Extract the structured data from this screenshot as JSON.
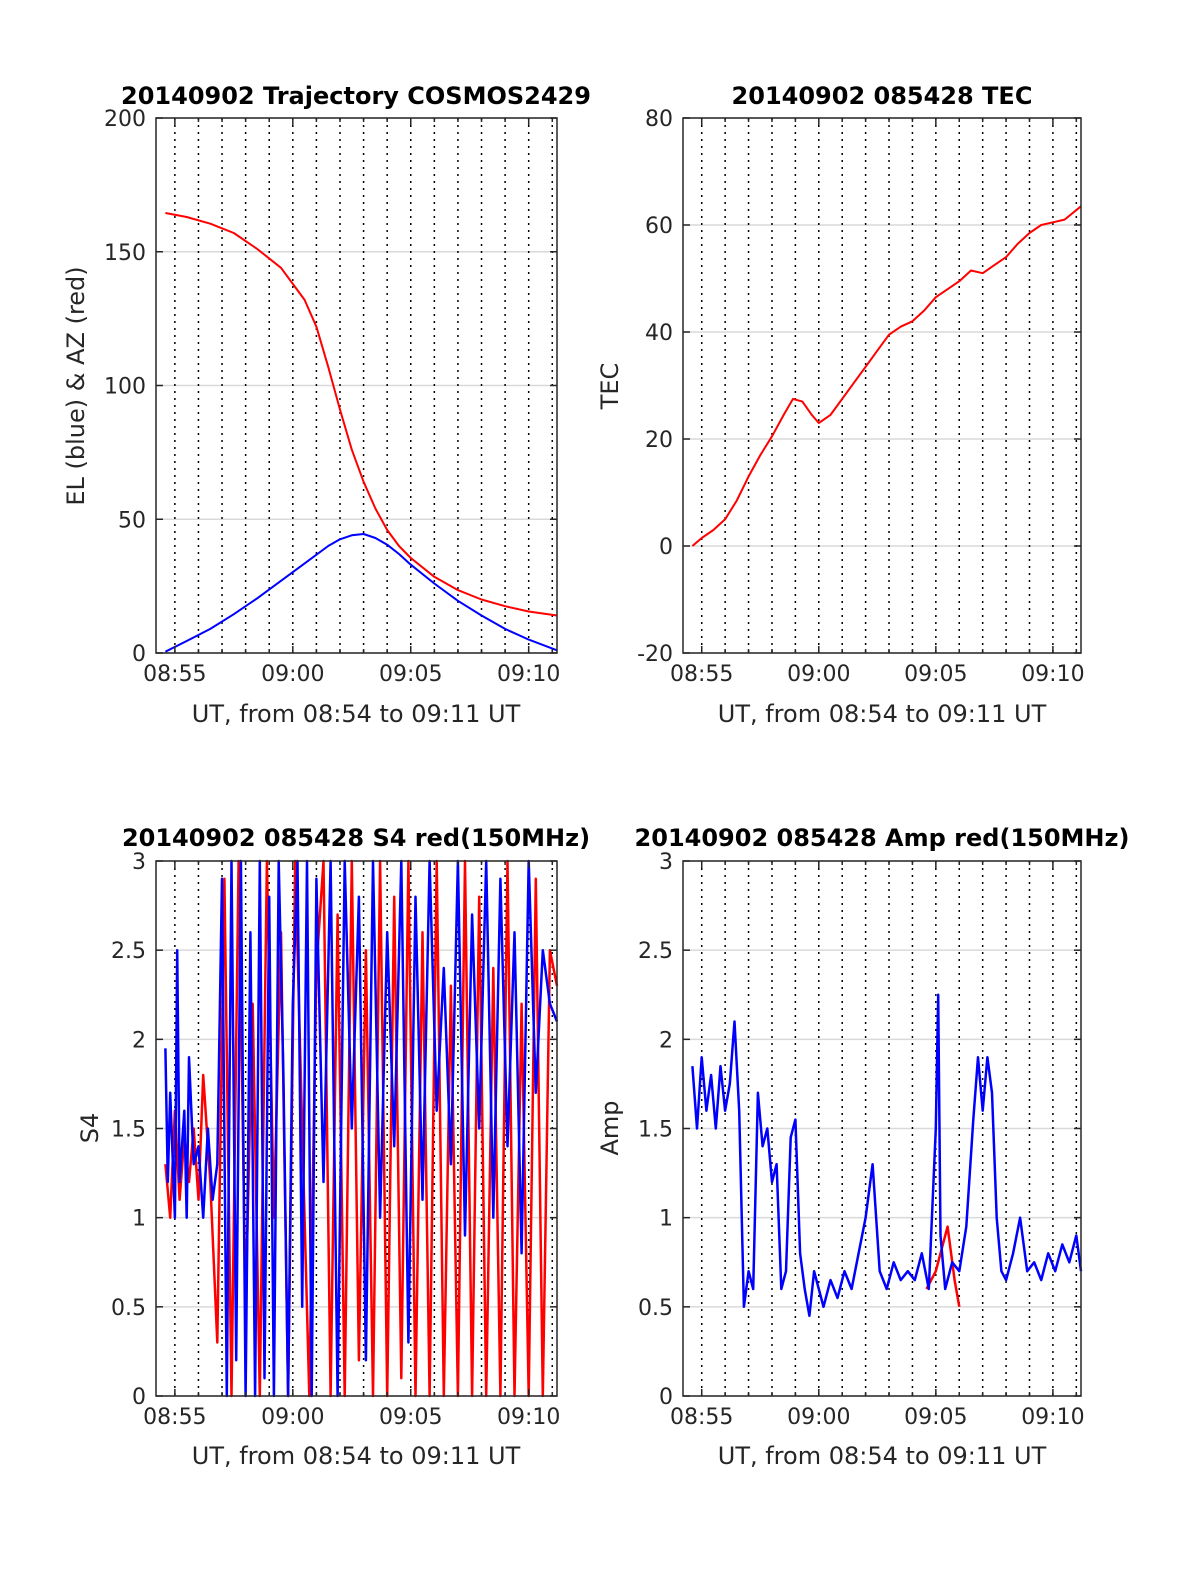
{
  "figure": {
    "colors": {
      "red": "#ff0000",
      "blue": "#0000ff",
      "grid": "#d9d9d9",
      "vline": "#000000"
    }
  },
  "chart_data": [
    {
      "type": "line",
      "title": "20140902 Trajectory COSMOS2429",
      "xlabel": "UT, from 08:54 to 09:11 UT",
      "ylabel": "EL (blue) & AZ (red)",
      "xlim": [
        534.2,
        551.2
      ],
      "ylim": [
        0,
        200
      ],
      "x_ticks": [
        535,
        540,
        545,
        550
      ],
      "x_tick_labels": [
        "08:55",
        "09:00",
        "09:05",
        "09:10"
      ],
      "y_ticks": [
        0,
        50,
        100,
        150,
        200
      ],
      "y_tick_labels": [
        "0",
        "50",
        "100",
        "150",
        "200"
      ],
      "grid": true,
      "series": [
        {
          "color": "red",
          "x": [
            534.6,
            535.5,
            536.5,
            537.5,
            538.5,
            539.5,
            540.5,
            541.0,
            541.5,
            542.0,
            542.5,
            543.0,
            543.5,
            544.0,
            544.5,
            545.0,
            546.0,
            547.0,
            548.0,
            549.0,
            550.0,
            551.2
          ],
          "values": [
            164.5,
            163.0,
            160.5,
            157.0,
            151.0,
            144.0,
            132.0,
            122.0,
            107.0,
            91.0,
            76.0,
            64.0,
            54.0,
            46.0,
            40.0,
            35.5,
            28.5,
            23.5,
            20.0,
            17.5,
            15.5,
            14.0
          ]
        },
        {
          "color": "blue",
          "x": [
            534.6,
            535.5,
            536.5,
            537.5,
            538.5,
            539.5,
            540.5,
            541.5,
            542.0,
            542.5,
            543.0,
            543.5,
            544.0,
            544.5,
            545.0,
            546.0,
            547.0,
            548.0,
            549.0,
            550.0,
            551.2
          ],
          "values": [
            0.5,
            4.5,
            9.0,
            14.5,
            20.5,
            27.0,
            33.5,
            40.0,
            42.5,
            44.0,
            44.5,
            43.0,
            40.5,
            37.0,
            33.0,
            26.0,
            19.5,
            14.0,
            9.0,
            5.0,
            1.0
          ]
        }
      ]
    },
    {
      "type": "line",
      "title": "20140902 085428 TEC",
      "xlabel": "UT, from 08:54 to 09:11 UT",
      "ylabel": "TEC",
      "xlim": [
        534.2,
        551.2
      ],
      "ylim": [
        -20,
        80
      ],
      "x_ticks": [
        535,
        540,
        545,
        550
      ],
      "x_tick_labels": [
        "08:55",
        "09:00",
        "09:05",
        "09:10"
      ],
      "y_ticks": [
        -20,
        0,
        20,
        40,
        60,
        80
      ],
      "y_tick_labels": [
        "-20",
        "0",
        "20",
        "40",
        "60",
        "80"
      ],
      "grid": true,
      "series": [
        {
          "color": "red",
          "x": [
            534.6,
            535.0,
            535.5,
            536.0,
            536.5,
            537.0,
            537.5,
            538.0,
            538.5,
            538.9,
            539.3,
            539.7,
            540.0,
            540.5,
            541.0,
            541.5,
            542.0,
            542.5,
            543.0,
            543.5,
            544.0,
            544.5,
            545.0,
            545.5,
            546.0,
            546.5,
            547.0,
            547.5,
            548.0,
            548.5,
            549.0,
            549.5,
            550.0,
            550.5,
            551.2
          ],
          "values": [
            0,
            1.5,
            3.0,
            5.0,
            8.5,
            13.0,
            17.0,
            20.5,
            24.5,
            27.5,
            27.0,
            24.5,
            23.0,
            24.5,
            27.5,
            30.5,
            33.5,
            36.5,
            39.5,
            41.0,
            42.0,
            44.0,
            46.5,
            48.0,
            49.5,
            51.5,
            51.0,
            52.5,
            54.0,
            56.5,
            58.5,
            60.0,
            60.5,
            61.0,
            63.5
          ]
        }
      ]
    },
    {
      "type": "line",
      "title": "20140902 085428 S4 red(150MHz)",
      "xlabel": "UT, from 08:54 to 09:11 UT",
      "ylabel": "S4",
      "xlim": [
        534.2,
        551.2
      ],
      "ylim": [
        0,
        3
      ],
      "x_ticks": [
        535,
        540,
        545,
        550
      ],
      "x_tick_labels": [
        "08:55",
        "09:00",
        "09:05",
        "09:10"
      ],
      "y_ticks": [
        0,
        0.5,
        1,
        1.5,
        2,
        2.5,
        3
      ],
      "y_tick_labels": [
        "0",
        "0.5",
        "1",
        "1.5",
        "2",
        "2.5",
        "3"
      ],
      "grid": true,
      "series": [
        {
          "color": "red",
          "x": [
            534.6,
            534.8,
            535.0,
            535.2,
            535.4,
            535.6,
            535.8,
            536.0,
            536.2,
            536.5,
            536.8,
            537.1,
            537.4,
            537.7,
            538.0,
            538.3,
            538.6,
            538.9,
            539.2,
            539.5,
            539.8,
            540.1,
            540.4,
            540.7,
            541.0,
            541.3,
            541.6,
            541.9,
            542.2,
            542.5,
            542.8,
            543.1,
            543.4,
            543.7,
            544.0,
            544.3,
            544.6,
            544.9,
            545.2,
            545.5,
            545.8,
            546.1,
            546.4,
            546.7,
            547.0,
            547.3,
            547.6,
            547.9,
            548.2,
            548.5,
            548.8,
            549.1,
            549.4,
            549.7,
            550.0,
            550.3,
            550.6,
            550.9,
            551.2
          ],
          "values": [
            1.3,
            1.0,
            1.6,
            1.1,
            1.45,
            1.2,
            1.5,
            1.1,
            1.8,
            1.2,
            0.3,
            2.9,
            0.0,
            3.0,
            0.5,
            2.2,
            0.0,
            3.0,
            1.0,
            2.6,
            0.0,
            3.0,
            1.5,
            0.0,
            2.4,
            3.0,
            0.0,
            2.7,
            0.0,
            3.0,
            0.2,
            2.5,
            0.0,
            3.0,
            0.0,
            2.8,
            0.1,
            3.0,
            0.0,
            2.6,
            0.0,
            3.0,
            0.0,
            2.3,
            0.0,
            3.0,
            0.0,
            2.8,
            0.0,
            2.4,
            0.0,
            3.0,
            0.0,
            2.2,
            0.0,
            2.9,
            0.0,
            2.5,
            2.3
          ]
        },
        {
          "color": "blue",
          "x": [
            534.6,
            534.7,
            534.8,
            535.0,
            535.1,
            535.2,
            535.4,
            535.5,
            535.6,
            535.8,
            536.0,
            536.2,
            536.4,
            536.6,
            536.8,
            537.0,
            537.2,
            537.4,
            537.6,
            537.8,
            538.0,
            538.2,
            538.4,
            538.6,
            538.8,
            539.0,
            539.2,
            539.4,
            539.6,
            539.8,
            540.0,
            540.2,
            540.4,
            540.6,
            540.8,
            541.0,
            541.3,
            541.6,
            541.9,
            542.2,
            542.5,
            542.8,
            543.1,
            543.4,
            543.7,
            544.0,
            544.3,
            544.6,
            544.9,
            545.2,
            545.5,
            545.8,
            546.1,
            546.4,
            546.7,
            547.0,
            547.3,
            547.6,
            547.9,
            548.2,
            548.5,
            548.8,
            549.1,
            549.4,
            549.7,
            550.0,
            550.3,
            550.6,
            550.9,
            551.2
          ],
          "values": [
            1.95,
            1.2,
            1.7,
            1.0,
            2.5,
            1.2,
            1.6,
            1.0,
            1.9,
            1.3,
            1.4,
            1.0,
            1.5,
            1.1,
            1.3,
            2.9,
            0.0,
            3.0,
            0.2,
            3.0,
            0.0,
            2.6,
            0.0,
            3.0,
            0.1,
            2.8,
            0.0,
            3.0,
            1.8,
            0.0,
            2.2,
            3.0,
            0.5,
            3.0,
            0.0,
            2.9,
            1.2,
            3.0,
            0.0,
            3.0,
            1.5,
            2.8,
            0.2,
            3.0,
            1.0,
            2.6,
            1.4,
            3.0,
            0.3,
            2.8,
            1.1,
            3.0,
            1.6,
            2.4,
            1.3,
            3.0,
            0.9,
            2.7,
            1.5,
            3.0,
            1.0,
            2.9,
            1.4,
            2.6,
            0.8,
            3.0,
            1.7,
            2.5,
            2.2,
            2.1
          ]
        }
      ]
    },
    {
      "type": "line",
      "title": "20140902 085428 Amp red(150MHz)",
      "xlabel": "UT, from 08:54 to 09:11 UT",
      "ylabel": "Amp",
      "xlim": [
        534.2,
        551.2
      ],
      "ylim": [
        0,
        3
      ],
      "x_ticks": [
        535,
        540,
        545,
        550
      ],
      "x_tick_labels": [
        "08:55",
        "09:00",
        "09:05",
        "09:10"
      ],
      "y_ticks": [
        0,
        0.5,
        1,
        1.5,
        2,
        2.5,
        3
      ],
      "y_tick_labels": [
        "0",
        "0.5",
        "1",
        "1.5",
        "2",
        "2.5",
        "3"
      ],
      "grid": true,
      "series": [
        {
          "color": "red",
          "x": [
            544.6,
            545.0,
            545.5,
            545.8,
            546.0
          ],
          "values": [
            0.6,
            0.7,
            0.95,
            0.65,
            0.5
          ]
        },
        {
          "color": "blue",
          "x": [
            534.6,
            534.8,
            535.0,
            535.2,
            535.4,
            535.6,
            535.8,
            536.0,
            536.2,
            536.4,
            536.6,
            536.8,
            537.0,
            537.2,
            537.4,
            537.6,
            537.8,
            538.0,
            538.2,
            538.4,
            538.6,
            538.8,
            539.0,
            539.2,
            539.4,
            539.6,
            539.8,
            540.0,
            540.2,
            540.5,
            540.8,
            541.1,
            541.4,
            541.7,
            542.0,
            542.3,
            542.6,
            542.9,
            543.2,
            543.5,
            543.8,
            544.1,
            544.4,
            544.7,
            545.0,
            545.1,
            545.2,
            545.4,
            545.7,
            546.0,
            546.3,
            546.6,
            546.8,
            547.0,
            547.2,
            547.4,
            547.6,
            547.8,
            548.0,
            548.3,
            548.6,
            548.9,
            549.2,
            549.5,
            549.8,
            550.1,
            550.4,
            550.7,
            551.0,
            551.2
          ],
          "values": [
            1.85,
            1.5,
            1.9,
            1.6,
            1.8,
            1.5,
            1.85,
            1.6,
            1.75,
            2.1,
            1.6,
            0.5,
            0.7,
            0.6,
            1.7,
            1.4,
            1.5,
            1.2,
            1.3,
            0.6,
            0.7,
            1.45,
            1.55,
            0.8,
            0.6,
            0.45,
            0.7,
            0.6,
            0.5,
            0.65,
            0.55,
            0.7,
            0.6,
            0.8,
            1.0,
            1.3,
            0.7,
            0.6,
            0.75,
            0.65,
            0.7,
            0.65,
            0.8,
            0.6,
            1.5,
            2.25,
            0.9,
            0.6,
            0.75,
            0.7,
            0.95,
            1.55,
            1.9,
            1.6,
            1.9,
            1.7,
            1.0,
            0.7,
            0.65,
            0.8,
            1.0,
            0.7,
            0.75,
            0.65,
            0.8,
            0.7,
            0.85,
            0.75,
            0.9,
            0.7
          ]
        }
      ]
    }
  ]
}
